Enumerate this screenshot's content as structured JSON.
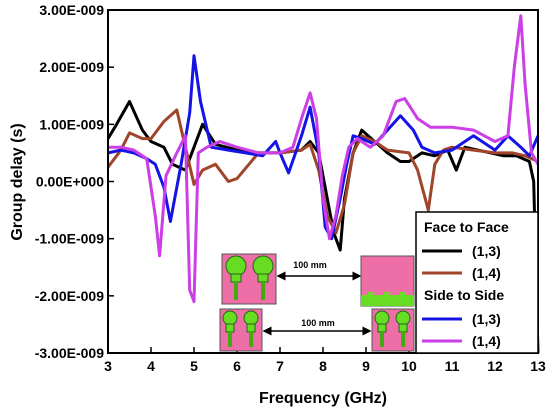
{
  "chart_data": {
    "type": "line",
    "xlabel": "Frequency (GHz)",
    "ylabel": "Group delay (s)",
    "xlim": [
      3,
      13
    ],
    "ylim": [
      -3e-09,
      3e-09
    ],
    "x_ticks": [
      "3",
      "4",
      "5",
      "6",
      "7",
      "8",
      "9",
      "10",
      "11",
      "12",
      "13"
    ],
    "y_ticks": [
      "-3.00E-009",
      "-2.00E-009",
      "-1.00E-009",
      "0.00E+000",
      "1.00E-009",
      "2.00E-009",
      "3.00E-009"
    ],
    "grid": false,
    "legend_position": "bottom-right",
    "legend_groups": [
      {
        "title": "Face to Face",
        "entries": [
          {
            "label": "(1,3)",
            "series": 0
          },
          {
            "label": "(1,4)",
            "series": 1
          }
        ]
      },
      {
        "title": "Side to Side",
        "entries": [
          {
            "label": "(1,3)",
            "series": 2
          },
          {
            "label": "(1,4)",
            "series": 3
          }
        ]
      }
    ],
    "series": [
      {
        "color": "#000000",
        "width": 3,
        "x": [
          3,
          3.2,
          3.5,
          3.8,
          4.0,
          4.3,
          4.5,
          4.8,
          5.0,
          5.2,
          5.5,
          6.0,
          6.5,
          7.0,
          7.5,
          7.7,
          7.9,
          8.1,
          8.25,
          8.4,
          8.5,
          8.7,
          8.9,
          9.2,
          9.5,
          9.8,
          10.0,
          10.3,
          10.6,
          10.9,
          11.1,
          11.3,
          11.6,
          11.9,
          12.2,
          12.5,
          12.8,
          12.9,
          13.0
        ],
        "y": [
          7.5e-10,
          1e-09,
          1.4e-09,
          9e-10,
          7e-10,
          6e-10,
          3e-10,
          2e-10,
          6e-10,
          1e-09,
          6.5e-10,
          5.5e-10,
          5e-10,
          5e-10,
          5.5e-10,
          7e-10,
          5e-10,
          -3e-10,
          -9e-10,
          -1.2e-09,
          -3e-10,
          5e-10,
          9e-10,
          7e-10,
          5e-10,
          3.5e-10,
          3.5e-10,
          5e-10,
          4.5e-10,
          5.5e-10,
          2e-10,
          6e-10,
          5.5e-10,
          5e-10,
          4.5e-10,
          4.5e-10,
          3.5e-10,
          0.0,
          -3e-09
        ]
      },
      {
        "color": "#a0442a",
        "width": 3,
        "x": [
          3,
          3.3,
          3.5,
          3.8,
          4.0,
          4.3,
          4.6,
          4.8,
          5.0,
          5.2,
          5.5,
          5.8,
          6.0,
          6.5,
          7.0,
          7.5,
          7.7,
          7.9,
          8.1,
          8.3,
          8.5,
          8.7,
          8.9,
          9.2,
          9.5,
          10.0,
          10.2,
          10.45,
          10.6,
          10.8,
          11.0,
          11.5,
          12.0,
          12.4,
          12.7,
          13.0
        ],
        "y": [
          2.5e-10,
          5.5e-10,
          8.5e-10,
          7.5e-10,
          7.5e-10,
          1.05e-09,
          1.25e-09,
          6e-10,
          -5e-11,
          2e-10,
          3e-10,
          0.0,
          5e-11,
          5e-10,
          5e-10,
          5.5e-10,
          6.5e-10,
          2e-10,
          -6e-10,
          -9e-10,
          -4e-10,
          5e-10,
          8e-10,
          7e-10,
          5.5e-10,
          5e-10,
          2e-10,
          -5e-10,
          3e-10,
          5.5e-10,
          6e-10,
          5.5e-10,
          5e-10,
          5e-10,
          4.5e-10,
          3.5e-10
        ]
      },
      {
        "color": "#1414e6",
        "width": 3,
        "x": [
          3,
          3.3,
          3.6,
          3.9,
          4.1,
          4.3,
          4.45,
          4.7,
          4.9,
          5.0,
          5.15,
          5.4,
          5.8,
          6.2,
          6.6,
          6.9,
          7.0,
          7.2,
          7.5,
          7.7,
          7.9,
          8.05,
          8.2,
          8.4,
          8.55,
          8.7,
          8.9,
          9.2,
          9.5,
          9.8,
          10.1,
          10.3,
          10.6,
          11.0,
          11.5,
          12.0,
          12.3,
          12.6,
          12.8,
          13.0
        ],
        "y": [
          5e-10,
          5.5e-10,
          5e-10,
          4e-10,
          3e-10,
          -1e-10,
          -7e-10,
          3e-10,
          1.2e-09,
          2.2e-09,
          1.4e-09,
          6e-10,
          5.5e-10,
          5e-10,
          4.5e-10,
          7e-10,
          5e-10,
          1.5e-10,
          8e-10,
          1.3e-09,
          5e-10,
          -8e-10,
          -1e-09,
          -3e-10,
          3e-10,
          8e-10,
          7.5e-10,
          6.5e-10,
          9e-10,
          1.15e-09,
          9e-10,
          6e-10,
          5e-10,
          5.5e-10,
          8e-10,
          5.5e-10,
          8e-10,
          6e-10,
          4.5e-10,
          8e-10
        ]
      },
      {
        "color": "#cc3ee6",
        "width": 3,
        "x": [
          3,
          3.3,
          3.6,
          3.9,
          4.1,
          4.2,
          4.35,
          4.6,
          4.8,
          4.9,
          5.0,
          5.1,
          5.3,
          5.6,
          6.0,
          6.5,
          7.0,
          7.3,
          7.5,
          7.7,
          7.85,
          8.0,
          8.15,
          8.3,
          8.45,
          8.6,
          8.8,
          9.1,
          9.4,
          9.7,
          9.9,
          10.2,
          10.5,
          11.0,
          11.5,
          12.0,
          12.3,
          12.45,
          12.6,
          12.7,
          12.85,
          13.0
        ],
        "y": [
          6e-10,
          6e-10,
          5.5e-10,
          4e-10,
          -6e-10,
          -1.3e-09,
          1e-10,
          5e-10,
          8e-10,
          -1.9e-09,
          -2.1e-09,
          5e-10,
          6e-10,
          7e-10,
          6e-10,
          5e-10,
          5e-10,
          6e-10,
          1.1e-09,
          1.55e-09,
          1.1e-09,
          -3e-10,
          -1e-09,
          -6e-10,
          1e-10,
          6e-10,
          7.5e-10,
          6e-10,
          8e-10,
          1.4e-09,
          1.45e-09,
          1.1e-09,
          9.5e-10,
          9.5e-10,
          9e-10,
          7e-10,
          8e-10,
          2e-09,
          2.9e-09,
          1.7e-09,
          5e-10,
          3e-10
        ]
      }
    ]
  },
  "inset": {
    "distance_top": "100 mm",
    "distance_bottom": "100 mm"
  }
}
